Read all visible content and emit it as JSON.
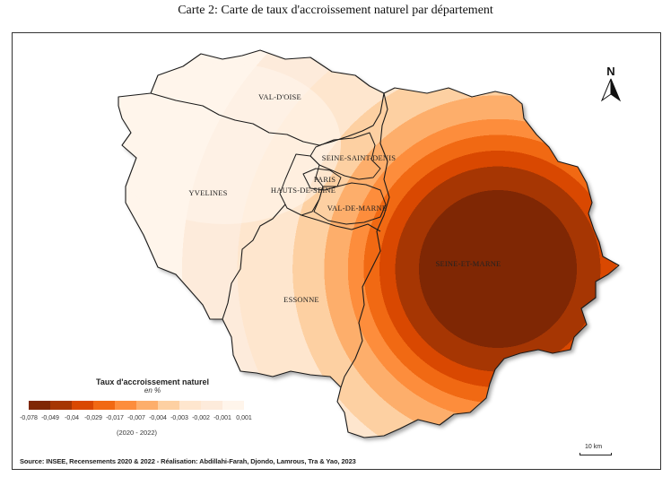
{
  "caption": "Carte 2: Carte de taux d'accroissement naturel par département",
  "departments": [
    {
      "id": "val-d-oise",
      "label": "VAL-D'OISE"
    },
    {
      "id": "yvelines",
      "label": "YVELINES"
    },
    {
      "id": "seine-saint-denis",
      "label": "SEINE-SAINT-DENIS"
    },
    {
      "id": "paris",
      "label": "PARIS"
    },
    {
      "id": "hauts-de-seine",
      "label": "HAUTS-DE-SEINE"
    },
    {
      "id": "val-de-marne",
      "label": "VAL-DE-MARNE"
    },
    {
      "id": "essonne",
      "label": "ESSONNE"
    },
    {
      "id": "seine-et-marne",
      "label": "SEINE-ET-MARNE"
    }
  ],
  "legend": {
    "title": "Taux d'accroissement naturel",
    "subtitle": "en %",
    "period": "(2020 - 2022)",
    "classes": [
      "-0,078",
      "-0,049",
      "-0,04",
      "-0,029",
      "-0,017",
      "-0,007",
      "-0,004",
      "-0,003",
      "-0,002",
      "-0,001",
      "0,001"
    ],
    "colors": [
      "#7f2704",
      "#a63603",
      "#d94801",
      "#f16913",
      "#fd8d3c",
      "#fdae6b",
      "#fdd0a2",
      "#fee6ce",
      "#fdebdb",
      "#fff5eb"
    ]
  },
  "north_arrow": {
    "label": "N",
    "icon": "north-arrow-icon"
  },
  "scale": {
    "label": "10 km"
  },
  "source": "Source: INSEE, Recensements 2020 & 2022 - Réalisation: Abdillahi-Farah, Djondo, Lamrous, Tra & Yao, 2023"
}
